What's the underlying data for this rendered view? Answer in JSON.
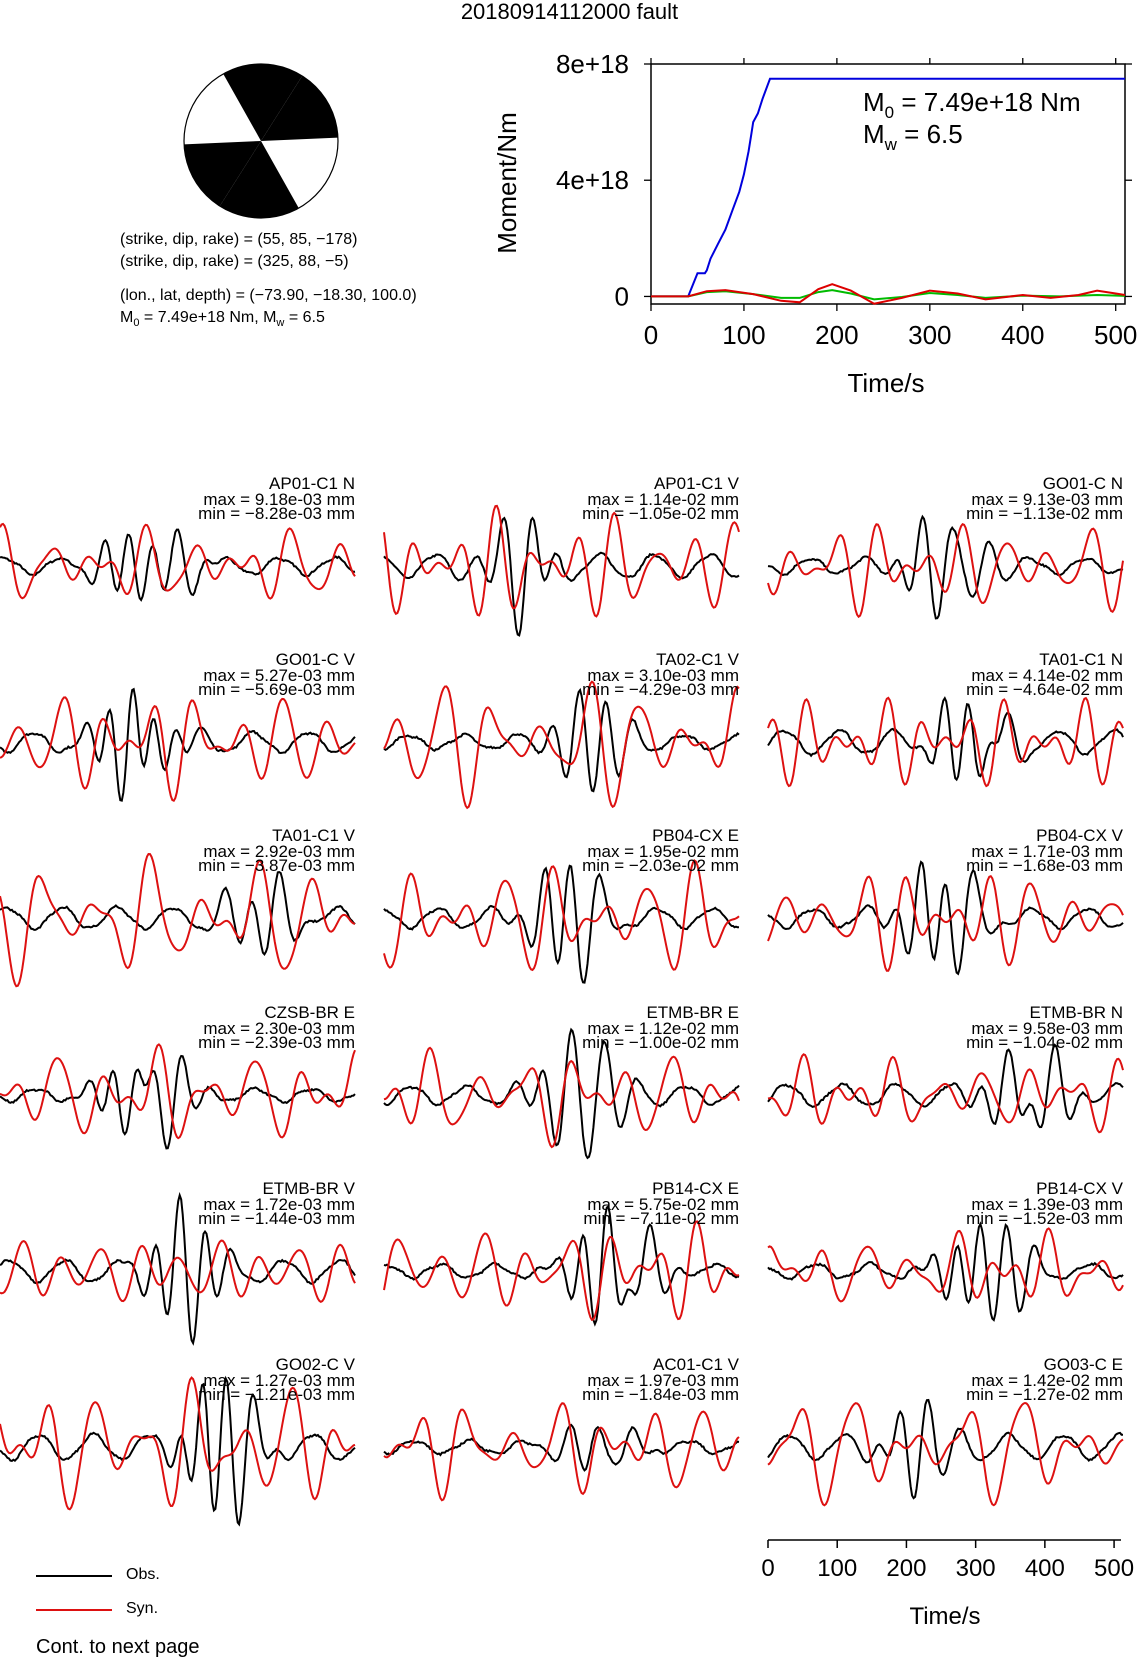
{
  "title": "20180914112000 fault",
  "mechanism": {
    "plane1": "(strike, dip, rake) = (55, 85, −178)",
    "plane2": "(strike, dip, rake) = (325, 88, −5)",
    "location": "(lon., lat, depth) = (−73.90, −18.30, 100.0)",
    "moment_prefix": "M",
    "moment_sub": "0",
    "moment_mid": " = 7.49e+18 Nm, M",
    "mw_sub": "w",
    "mw_suffix": " = 6.5"
  },
  "chart_data": {
    "type": "line",
    "xlabel": "Time/s",
    "ylabel": "Moment/Nm",
    "xlim": [
      0,
      510
    ],
    "ylim": [
      -2.6e+17,
      8e+18
    ],
    "xticks": [
      "0",
      "100",
      "200",
      "300",
      "400",
      "500"
    ],
    "yticks": [
      "0",
      "4e+18",
      "8e+18"
    ],
    "annotation_m0": {
      "prefix": "M",
      "sub": "0",
      "suffix": " = 7.49e+18 Nm"
    },
    "annotation_mw": {
      "prefix": "M",
      "sub": "w",
      "suffix": " = 6.5"
    },
    "series": [
      {
        "color": "#0000dd",
        "x": [
          0,
          40,
          50,
          58,
          60,
          64,
          72,
          80,
          88,
          95,
          100,
          105,
          108,
          110,
          115,
          120,
          128,
          510
        ],
        "y": [
          0,
          0,
          8e+17,
          8e+17,
          9e+17,
          1.3e+18,
          1.8e+18,
          2.3e+18,
          3e+18,
          3.6e+18,
          4.2e+18,
          5e+18,
          5.6e+18,
          6e+18,
          6.3e+18,
          6.8e+18,
          7.49e+18,
          7.49e+18
        ]
      },
      {
        "color": "#00bb00",
        "x": [
          0,
          40,
          60,
          80,
          110,
          140,
          160,
          180,
          195,
          215,
          240,
          270,
          300,
          330,
          360,
          400,
          440,
          480,
          510
        ],
        "y": [
          0,
          0,
          1.5e+17,
          1.8e+17,
          8e+16,
          -5e+16,
          -5e+16,
          1.5e+17,
          2.2e+17,
          1e+17,
          -1e+17,
          -2e+16,
          1.2e+17,
          5e+16,
          -5e+16,
          3e+16,
          0,
          5e+16,
          2e+16
        ]
      },
      {
        "color": "#dd0000",
        "x": [
          0,
          40,
          60,
          80,
          110,
          140,
          160,
          180,
          195,
          215,
          240,
          270,
          300,
          330,
          360,
          400,
          430,
          460,
          480,
          500,
          510
        ],
        "y": [
          0,
          0,
          1.8e+17,
          2.2e+17,
          8e+16,
          -1.5e+17,
          -2e+17,
          2.5e+17,
          4.2e+17,
          2e+17,
          -2.5e+17,
          -5e+16,
          2e+17,
          1e+17,
          -1e+17,
          5e+16,
          -5e+16,
          5e+16,
          2e+17,
          1e+17,
          5e+16
        ]
      }
    ]
  },
  "waveforms": [
    {
      "label": "AP01-C1 N",
      "max": "max = 9.18e-03 mm",
      "min": "min = −8.28e-03 mm"
    },
    {
      "label": "AP01-C1 V",
      "max": "max = 1.14e-02 mm",
      "min": "min = −1.05e-02 mm"
    },
    {
      "label": "GO01-C N",
      "max": "max = 9.13e-03 mm",
      "min": "min = −1.13e-02 mm"
    },
    {
      "label": "GO01-C V",
      "max": "max = 5.27e-03 mm",
      "min": "min = −5.69e-03 mm"
    },
    {
      "label": "TA02-C1 V",
      "max": "max = 3.10e-03 mm",
      "min": "min = −4.29e-03 mm"
    },
    {
      "label": "TA01-C1 N",
      "max": "max = 4.14e-02 mm",
      "min": "min = −4.64e-02 mm"
    },
    {
      "label": "TA01-C1 V",
      "max": "max = 2.92e-03 mm",
      "min": "min = −3.87e-03 mm"
    },
    {
      "label": "PB04-CX E",
      "max": "max = 1.95e-02 mm",
      "min": "min = −2.03e-02 mm"
    },
    {
      "label": "PB04-CX V",
      "max": "max = 1.71e-03 mm",
      "min": "min = −1.68e-03 mm"
    },
    {
      "label": "CZSB-BR E",
      "max": "max = 2.30e-03 mm",
      "min": "min = −2.39e-03 mm"
    },
    {
      "label": "ETMB-BR E",
      "max": "max = 1.12e-02 mm",
      "min": "min = −1.00e-02 mm"
    },
    {
      "label": "ETMB-BR N",
      "max": "max = 9.58e-03 mm",
      "min": "min = −1.04e-02 mm"
    },
    {
      "label": "ETMB-BR V",
      "max": "max = 1.72e-03 mm",
      "min": "min = −1.44e-03 mm"
    },
    {
      "label": "PB14-CX E",
      "max": "max = 5.75e-02 mm",
      "min": "min = −7.11e-02 mm"
    },
    {
      "label": "PB14-CX V",
      "max": "max = 1.39e-03 mm",
      "min": "min = −1.52e-03 mm"
    },
    {
      "label": "GO02-C V",
      "max": "max = 1.27e-03 mm",
      "min": "min = −1.21e-03 mm"
    },
    {
      "label": "AC01-C1 V",
      "max": "max = 1.97e-03 mm",
      "min": "min = −1.84e-03 mm"
    },
    {
      "label": "GO03-C E",
      "max": "max = 1.42e-02 mm",
      "min": "min = −1.27e-02 mm"
    }
  ],
  "time_axis": {
    "label": "Time/s",
    "ticks": [
      "0",
      "100",
      "200",
      "300",
      "400",
      "500"
    ]
  },
  "legend": {
    "obs": "Obs.",
    "syn": "Syn.",
    "obs_color": "#000000",
    "syn_color": "#dd1111"
  },
  "footer": "Cont. to next page"
}
